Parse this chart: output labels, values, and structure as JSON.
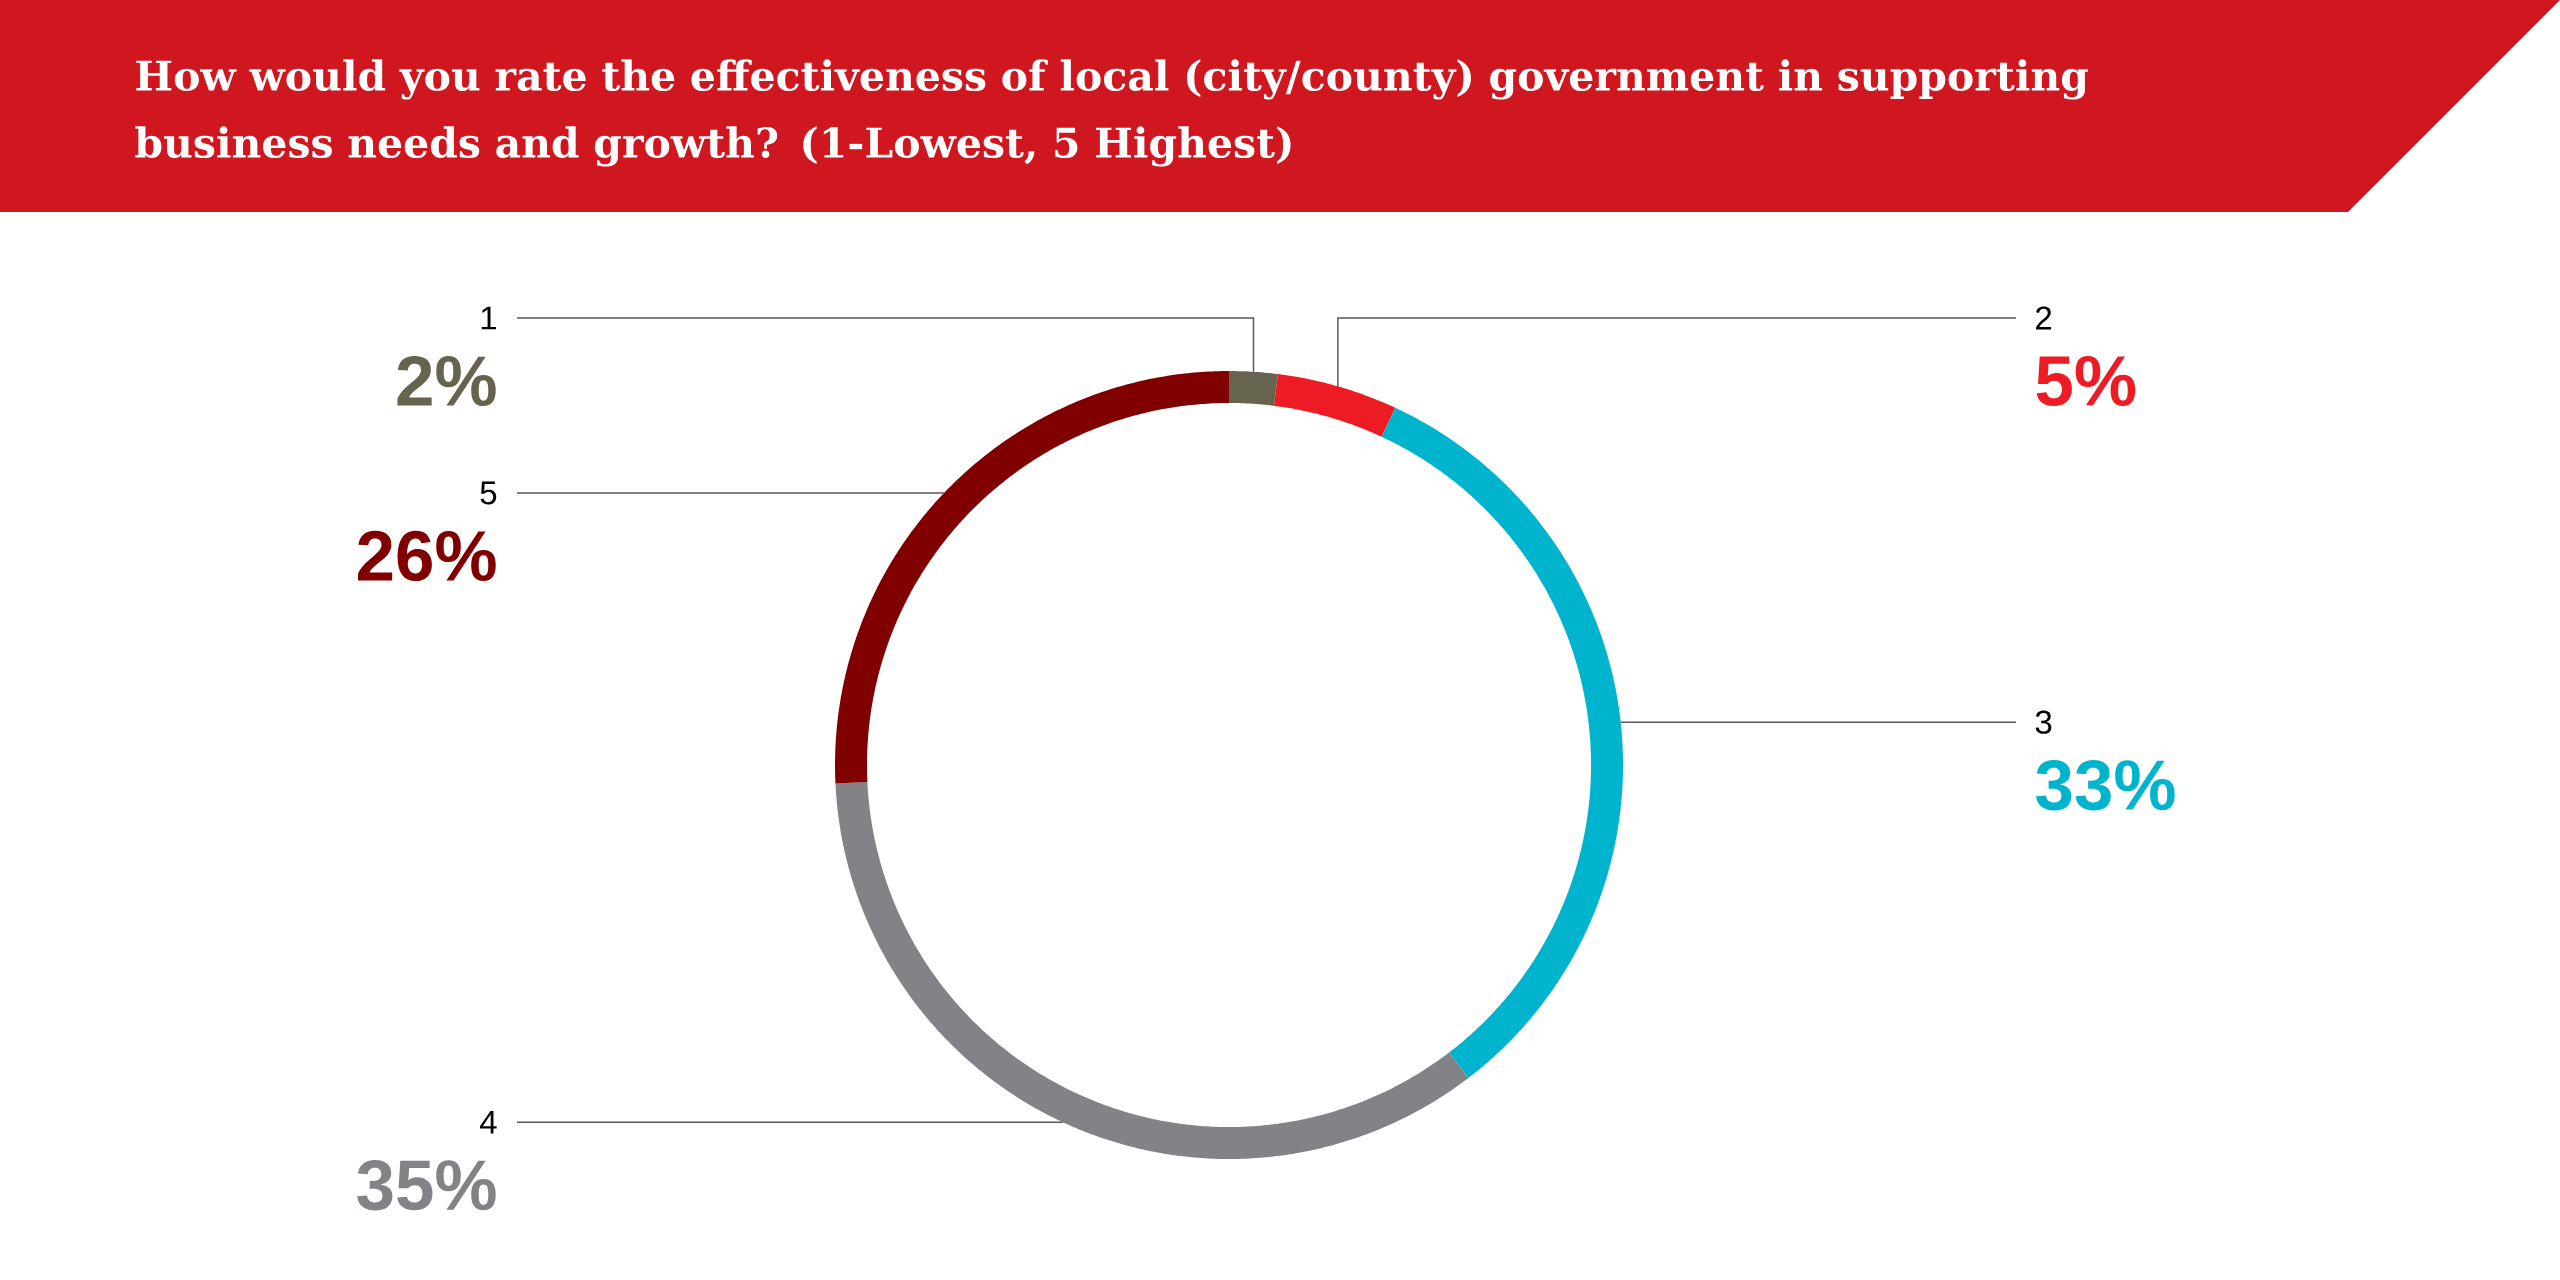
{
  "chart_data": {
    "type": "donut",
    "title": "How would you rate the effectiveness of local (city/county) government in supporting business needs and growth? (1-Lowest, 5 Highest)",
    "categories": [
      "1",
      "2",
      "3",
      "4",
      "5"
    ],
    "values": [
      2,
      5,
      33,
      35,
      26
    ],
    "colors": [
      "#66644e",
      "#ed1c24",
      "#00b4cd",
      "#838387",
      "#800000"
    ],
    "value_labels": [
      "2%",
      "5%",
      "33%",
      "35%",
      "26%"
    ]
  }
}
